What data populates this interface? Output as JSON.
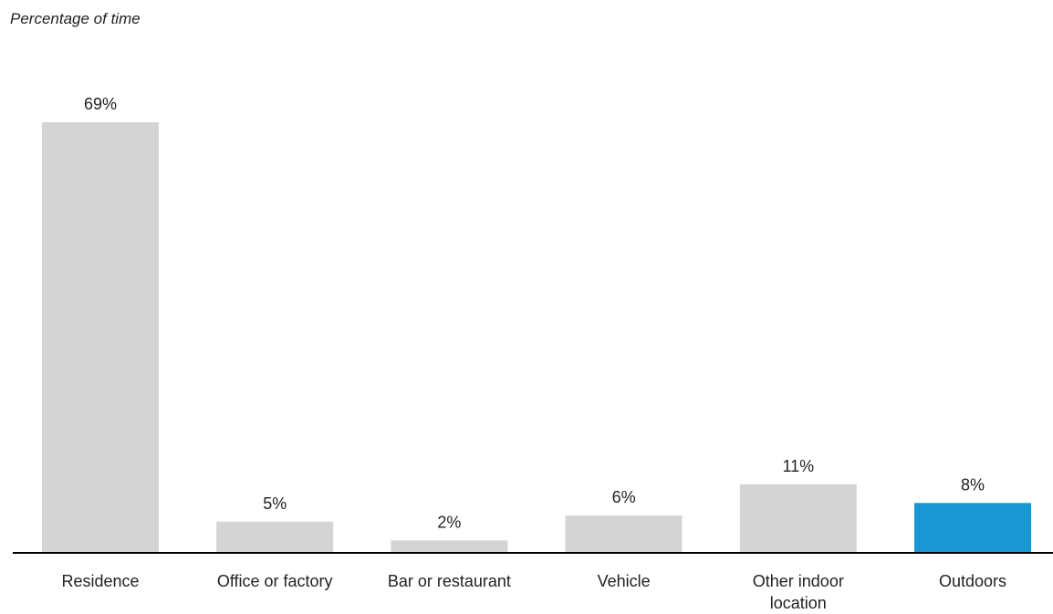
{
  "chart_data": {
    "type": "bar",
    "title": "Percentage of time",
    "xlabel": "",
    "ylabel": "",
    "ylim": [
      0,
      69
    ],
    "grid": false,
    "categories": [
      "Residence",
      "Office or factory",
      "Bar or restaurant",
      "Vehicle",
      "Other indoor location",
      "Outdoors"
    ],
    "category_lines": [
      [
        "Residence"
      ],
      [
        "Office or factory"
      ],
      [
        "Bar or restaurant"
      ],
      [
        "Vehicle"
      ],
      [
        "Other indoor",
        "location"
      ],
      [
        "Outdoors"
      ]
    ],
    "values": [
      69,
      5,
      2,
      6,
      11,
      8
    ],
    "data_labels": [
      "69%",
      "5%",
      "2%",
      "6%",
      "11%",
      "8%"
    ],
    "colors": [
      "#d4d4d4",
      "#d4d4d4",
      "#d4d4d4",
      "#d4d4d4",
      "#d4d4d4",
      "#1a96d4"
    ],
    "axis_color": "#000000"
  }
}
